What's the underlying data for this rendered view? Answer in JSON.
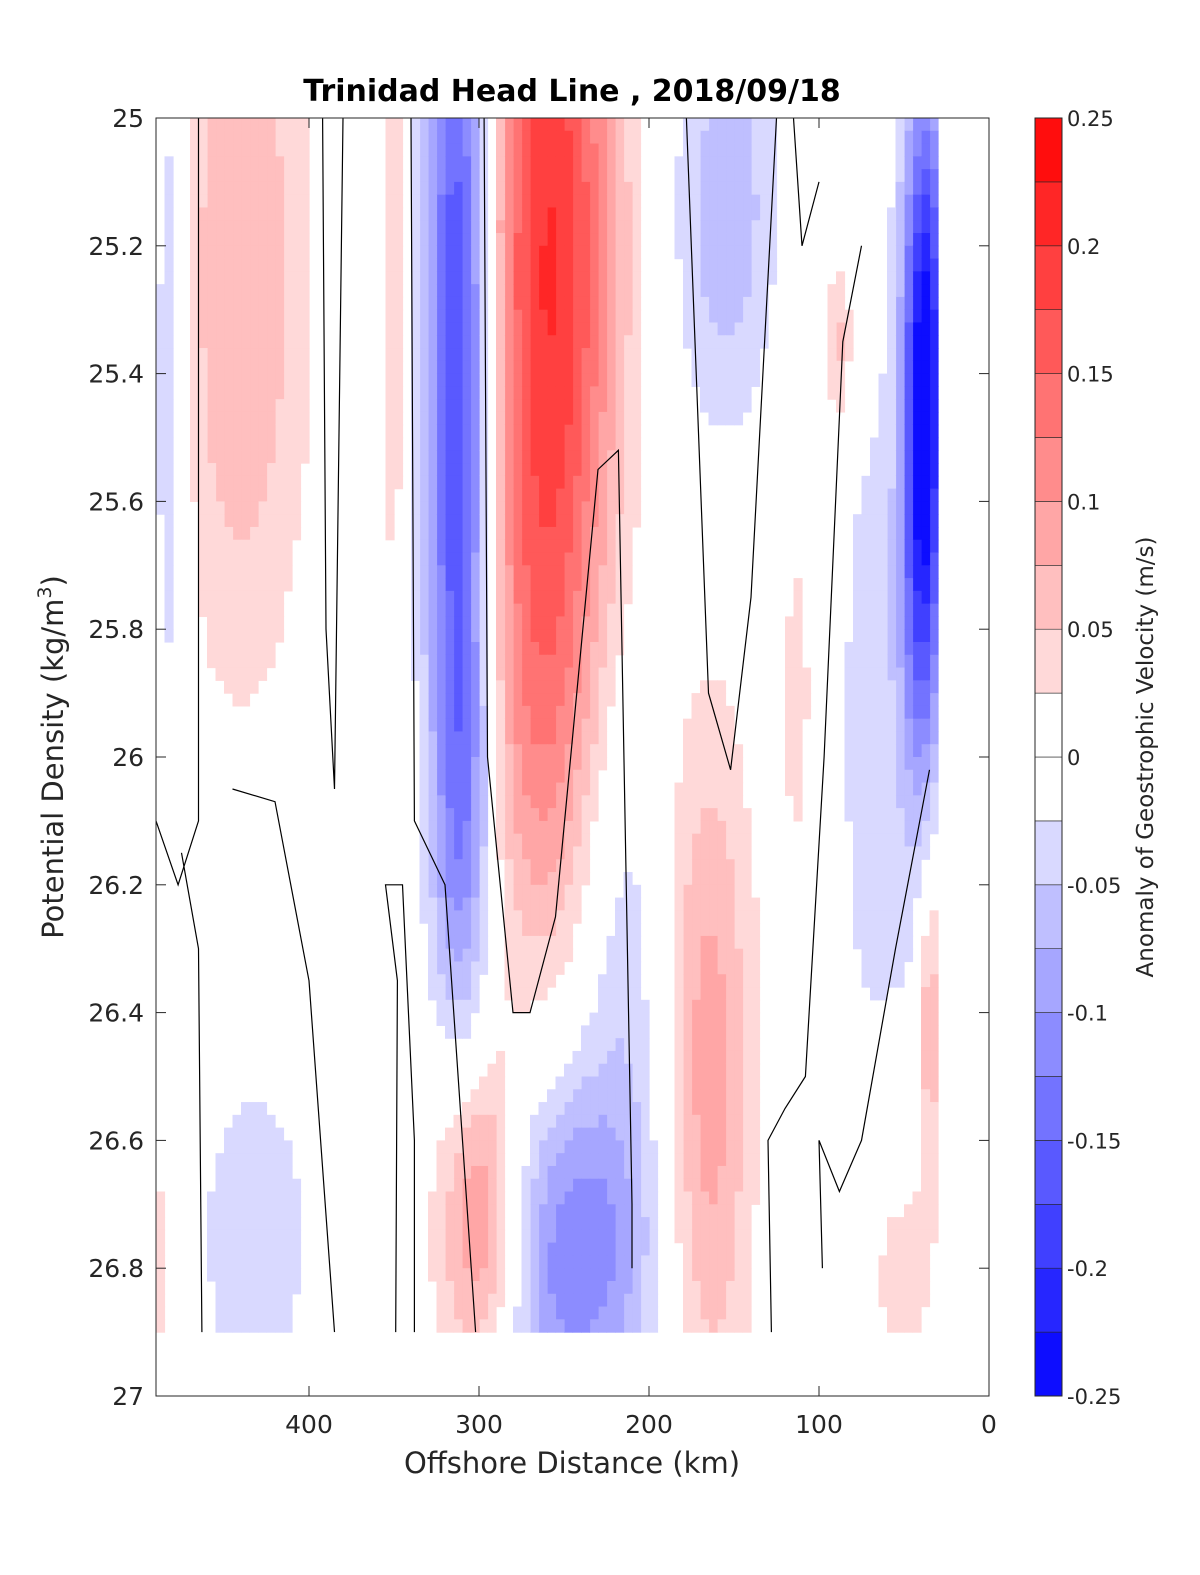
{
  "chart_data": {
    "type": "heatmap",
    "title": "Trinidad Head Line , 2018/09/18",
    "xlabel": "Offshore Distance (km)",
    "ylabel": "Potential Density (kg/m",
    "ylabel_sup": "3",
    "ylabel_close": ")",
    "xlim": [
      490,
      0
    ],
    "ylim": [
      25,
      27
    ],
    "x_ticks": [
      "400",
      "300",
      "200",
      "100",
      "0"
    ],
    "y_ticks": [
      "25",
      "25.2",
      "25.4",
      "25.6",
      "25.8",
      "26",
      "26.2",
      "26.4",
      "26.6",
      "26.8",
      "27"
    ],
    "colorbar": {
      "label": "Anomaly of Geostrophic Velocity (m/s)",
      "range": [
        -0.25,
        0.25
      ],
      "levels": 20,
      "ticks": [
        "0.25",
        "0.2",
        "0.15",
        "0.1",
        "0.05",
        "0",
        "-0.05",
        "-0.1",
        "-0.15",
        "-0.2",
        "-0.25"
      ]
    },
    "colors": {
      "positive": "#ff0000",
      "negative": "#0000ff",
      "zero": "#ffffff"
    },
    "grid": false,
    "data_coverage": {
      "x_range": [
        30,
        490
      ],
      "y_range": [
        25,
        26.9
      ]
    },
    "anomalies": [
      {
        "x": 482,
        "y": 25.35,
        "sx": 8,
        "sy": 0.5,
        "v": -0.055
      },
      {
        "x": 440,
        "y": 25.25,
        "sx": 28,
        "sy": 0.45,
        "v": 0.075
      },
      {
        "x": 432,
        "y": 26.75,
        "sx": 25,
        "sy": 0.2,
        "v": -0.045
      },
      {
        "x": 487,
        "y": 26.8,
        "sx": 6,
        "sy": 0.15,
        "v": 0.04
      },
      {
        "x": 350,
        "y": 25.3,
        "sx": 5,
        "sy": 0.4,
        "v": 0.045
      },
      {
        "x": 312,
        "y": 25.35,
        "sx": 14,
        "sy": 0.55,
        "v": -0.2
      },
      {
        "x": 310,
        "y": 26.1,
        "sx": 12,
        "sy": 0.25,
        "v": -0.07
      },
      {
        "x": 258,
        "y": 25.2,
        "sx": 28,
        "sy": 0.5,
        "v": 0.2
      },
      {
        "x": 265,
        "y": 25.95,
        "sx": 22,
        "sy": 0.3,
        "v": 0.07
      },
      {
        "x": 300,
        "y": 26.72,
        "sx": 18,
        "sy": 0.18,
        "v": 0.12
      },
      {
        "x": 245,
        "y": 26.78,
        "sx": 32,
        "sy": 0.2,
        "v": -0.12
      },
      {
        "x": 215,
        "y": 26.3,
        "sx": 18,
        "sy": 0.3,
        "v": -0.04
      },
      {
        "x": 155,
        "y": 25.15,
        "sx": 22,
        "sy": 0.25,
        "v": -0.07
      },
      {
        "x": 165,
        "y": 26.5,
        "sx": 18,
        "sy": 0.4,
        "v": 0.09
      },
      {
        "x": 110,
        "y": 25.9,
        "sx": 14,
        "sy": 0.4,
        "v": 0.035
      },
      {
        "x": 88,
        "y": 25.35,
        "sx": 6,
        "sy": 0.1,
        "v": 0.06
      },
      {
        "x": 65,
        "y": 25.95,
        "sx": 25,
        "sy": 0.45,
        "v": -0.04
      },
      {
        "x": 38,
        "y": 25.35,
        "sx": 9,
        "sy": 0.3,
        "v": -0.22
      },
      {
        "x": 40,
        "y": 25.75,
        "sx": 8,
        "sy": 0.25,
        "v": -0.1
      },
      {
        "x": 35,
        "y": 26.4,
        "sx": 5,
        "sy": 0.18,
        "v": 0.08
      },
      {
        "x": 52,
        "y": 26.8,
        "sx": 16,
        "sy": 0.15,
        "v": 0.04
      }
    ],
    "zero_contours": [
      [
        [
          465,
          25.0
        ],
        [
          465,
          26.1
        ],
        [
          477,
          26.2
        ],
        [
          490,
          26.1
        ]
      ],
      [
        [
          463,
          26.9
        ],
        [
          465,
          26.3
        ],
        [
          475,
          26.15
        ]
      ],
      [
        [
          380,
          25.0
        ],
        [
          385,
          26.05
        ],
        [
          390,
          25.8
        ],
        [
          392,
          25.0
        ]
      ],
      [
        [
          445,
          26.05
        ],
        [
          420,
          26.07
        ],
        [
          400,
          26.35
        ],
        [
          385,
          26.9
        ]
      ],
      [
        [
          349,
          26.9
        ],
        [
          348,
          26.35
        ],
        [
          355,
          26.2
        ],
        [
          345,
          26.2
        ],
        [
          338,
          26.6
        ],
        [
          338,
          26.9
        ]
      ],
      [
        [
          340,
          25.0
        ],
        [
          338,
          26.1
        ],
        [
          320,
          26.2
        ],
        [
          302,
          26.9
        ]
      ],
      [
        [
          297,
          25.0
        ],
        [
          295,
          26.0
        ],
        [
          280,
          26.4
        ],
        [
          270,
          26.4
        ],
        [
          255,
          26.25
        ],
        [
          230,
          25.55
        ],
        [
          218,
          25.52
        ],
        [
          210,
          26.7
        ],
        [
          210,
          26.8
        ]
      ],
      [
        [
          178,
          25.0
        ],
        [
          165,
          25.9
        ],
        [
          152,
          26.02
        ],
        [
          140,
          25.75
        ],
        [
          125,
          25.0
        ]
      ],
      [
        [
          115,
          25.0
        ],
        [
          110,
          25.2
        ],
        [
          100,
          25.1
        ]
      ],
      [
        [
          128,
          26.9
        ],
        [
          130,
          26.6
        ],
        [
          120,
          26.55
        ],
        [
          108,
          26.5
        ],
        [
          97,
          26.0
        ],
        [
          86,
          25.35
        ],
        [
          75,
          25.2
        ]
      ],
      [
        [
          98,
          26.8
        ],
        [
          100,
          26.6
        ],
        [
          88,
          26.68
        ],
        [
          75,
          26.6
        ],
        [
          55,
          26.3
        ],
        [
          35,
          26.02
        ]
      ]
    ]
  }
}
